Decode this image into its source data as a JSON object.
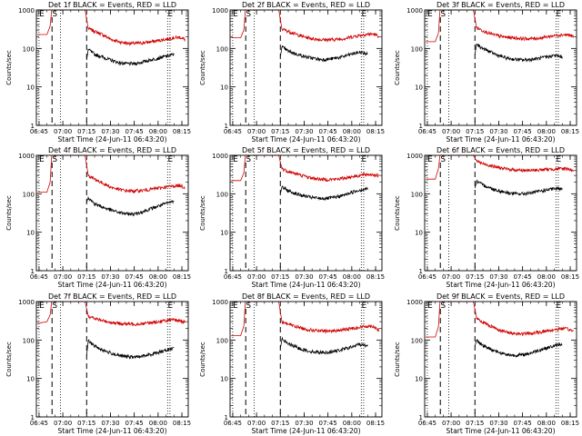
{
  "chart_data": [
    {
      "type": "line",
      "title": "Det 1f BLACK = Events, RED = LLD",
      "ylabel": "Counts/sec",
      "xlabel": "Start Time (24-Jun-11 06:43:20)",
      "yscale": "log",
      "ylim": [
        1,
        1000
      ],
      "ytick_labels": [
        "1000",
        "100",
        "10",
        "1"
      ],
      "xtick_labels": [
        "06:45",
        "07:00",
        "07:15",
        "07:30",
        "07:45",
        "08:00",
        "08:15"
      ],
      "markers": [
        "E",
        "S",
        "E"
      ],
      "colors": {
        "black": "#000000",
        "red": "#d00000"
      },
      "series": [
        {
          "color": "red",
          "x": [
            "06:44",
            "06:50",
            "06:52",
            "06:53",
            "06:57",
            "06:58",
            "07:14",
            "07:16",
            "07:20",
            "07:25",
            "07:30",
            "07:35",
            "07:40",
            "07:45",
            "07:50",
            "07:55",
            "08:00",
            "08:05",
            "08:10",
            "08:14",
            "08:17"
          ],
          "values": [
            230,
            230,
            380,
            1000,
            1000,
            1000,
            1000,
            330,
            280,
            230,
            175,
            150,
            138,
            135,
            140,
            148,
            160,
            175,
            190,
            195,
            170
          ]
        },
        {
          "color": "black",
          "x": [
            "07:15",
            "07:16",
            "07:20",
            "07:25",
            "07:30",
            "07:35",
            "07:40",
            "07:45",
            "07:50",
            "07:55",
            "08:00",
            "08:05",
            "08:10"
          ],
          "values": [
            50,
            95,
            70,
            60,
            50,
            43,
            40,
            40,
            44,
            50,
            56,
            63,
            70
          ]
        }
      ]
    },
    {
      "type": "line",
      "title": "Det 2f BLACK = Events, RED = LLD",
      "ylabel": "Counts/sec",
      "xlabel": "Start Time (24-Jun-11 06:43:20)",
      "yscale": "log",
      "ylim": [
        1,
        1000
      ],
      "ytick_labels": [
        "1000",
        "100",
        "10",
        "1"
      ],
      "xtick_labels": [
        "06:45",
        "07:00",
        "07:15",
        "07:30",
        "07:45",
        "08:00",
        "08:15"
      ],
      "markers": [
        "E",
        "S",
        "E"
      ],
      "colors": {
        "black": "#000000",
        "red": "#d00000"
      },
      "series": [
        {
          "color": "red",
          "x": [
            "06:44",
            "06:50",
            "06:52",
            "06:53",
            "06:57",
            "06:58",
            "07:14",
            "07:16",
            "07:20",
            "07:25",
            "07:30",
            "07:35",
            "07:40",
            "07:45",
            "07:50",
            "07:55",
            "08:00",
            "08:05",
            "08:10",
            "08:14",
            "08:17"
          ],
          "values": [
            190,
            190,
            300,
            1000,
            1000,
            1000,
            1000,
            320,
            280,
            235,
            200,
            180,
            170,
            168,
            172,
            180,
            200,
            220,
            235,
            235,
            210
          ]
        },
        {
          "color": "black",
          "x": [
            "07:15",
            "07:16",
            "07:20",
            "07:25",
            "07:30",
            "07:35",
            "07:40",
            "07:45",
            "07:50",
            "07:55",
            "08:00",
            "08:05",
            "08:10"
          ],
          "values": [
            60,
            110,
            85,
            72,
            62,
            56,
            52,
            52,
            56,
            62,
            72,
            80,
            72
          ]
        }
      ]
    },
    {
      "type": "line",
      "title": "Det 3f BLACK = Events, RED = LLD",
      "ylabel": "Counts/sec",
      "xlabel": "Start Time (24-Jun-11 06:43:20)",
      "yscale": "log",
      "ylim": [
        1,
        1000
      ],
      "ytick_labels": [
        "1000",
        "100",
        "10",
        "1"
      ],
      "xtick_labels": [
        "06:45",
        "07:00",
        "07:15",
        "07:30",
        "07:45",
        "08:00",
        "08:15"
      ],
      "markers": [
        "E",
        "S",
        "E"
      ],
      "colors": {
        "black": "#000000",
        "red": "#d00000"
      },
      "series": [
        {
          "color": "red",
          "x": [
            "06:44",
            "06:50",
            "06:52",
            "06:53",
            "06:57",
            "06:58",
            "07:14",
            "07:16",
            "07:20",
            "07:25",
            "07:30",
            "07:35",
            "07:40",
            "07:45",
            "07:50",
            "07:55",
            "08:00",
            "08:05",
            "08:10",
            "08:14",
            "08:17"
          ],
          "values": [
            150,
            150,
            250,
            1000,
            1000,
            1000,
            1000,
            350,
            290,
            240,
            210,
            195,
            190,
            180,
            180,
            185,
            200,
            215,
            230,
            225,
            200
          ]
        },
        {
          "color": "black",
          "x": [
            "07:15",
            "07:16",
            "07:20",
            "07:25",
            "07:30",
            "07:35",
            "07:40",
            "07:45",
            "07:50",
            "07:55",
            "08:00",
            "08:05",
            "08:10"
          ],
          "values": [
            70,
            130,
            100,
            80,
            65,
            56,
            52,
            50,
            52,
            55,
            60,
            66,
            60
          ]
        }
      ]
    },
    {
      "type": "line",
      "title": "Det 4f BLACK = Events, RED = LLD",
      "ylabel": "Counts/sec",
      "xlabel": "Start Time (24-Jun-11 06:43:20)",
      "yscale": "log",
      "ylim": [
        1,
        1000
      ],
      "ytick_labels": [
        "1000",
        "100",
        "10",
        "1"
      ],
      "xtick_labels": [
        "06:45",
        "07:00",
        "07:15",
        "07:30",
        "07:45",
        "08:00",
        "08:15"
      ],
      "markers": [
        "E",
        "S",
        "E"
      ],
      "colors": {
        "black": "#000000",
        "red": "#d00000"
      },
      "series": [
        {
          "color": "red",
          "x": [
            "06:44",
            "06:50",
            "06:52",
            "06:53",
            "06:57",
            "06:58",
            "07:14",
            "07:16",
            "07:20",
            "07:25",
            "07:30",
            "07:35",
            "07:40",
            "07:45",
            "07:50",
            "07:55",
            "08:00",
            "08:05",
            "08:10",
            "08:14",
            "08:17"
          ],
          "values": [
            110,
            110,
            200,
            1000,
            1000,
            1000,
            1000,
            300,
            240,
            190,
            150,
            130,
            120,
            118,
            122,
            130,
            140,
            150,
            160,
            165,
            145
          ]
        },
        {
          "color": "black",
          "x": [
            "07:15",
            "07:16",
            "07:20",
            "07:25",
            "07:30",
            "07:35",
            "07:40",
            "07:45",
            "07:50",
            "07:55",
            "08:00",
            "08:05",
            "08:10"
          ],
          "values": [
            60,
            80,
            55,
            45,
            38,
            33,
            30,
            30,
            34,
            40,
            48,
            56,
            65
          ]
        }
      ]
    },
    {
      "type": "line",
      "title": "Det 5f BLACK = Events, RED = LLD",
      "ylabel": "Counts/sec",
      "xlabel": "Start Time (24-Jun-11 06:43:20)",
      "yscale": "log",
      "ylim": [
        1,
        1000
      ],
      "ytick_labels": [
        "1000",
        "100",
        "10",
        "1"
      ],
      "xtick_labels": [
        "06:45",
        "07:00",
        "07:15",
        "07:30",
        "07:45",
        "08:00",
        "08:15"
      ],
      "markers": [
        "E",
        "S",
        "E"
      ],
      "colors": {
        "black": "#000000",
        "red": "#d00000"
      },
      "series": [
        {
          "color": "red",
          "x": [
            "06:44",
            "06:50",
            "06:52",
            "06:53",
            "06:57",
            "06:58",
            "07:14",
            "07:16",
            "07:20",
            "07:25",
            "07:30",
            "07:35",
            "07:40",
            "07:45",
            "07:50",
            "07:55",
            "08:00",
            "08:05",
            "08:10",
            "08:14",
            "08:17"
          ],
          "values": [
            220,
            220,
            350,
            1000,
            1000,
            1000,
            1000,
            450,
            380,
            330,
            290,
            255,
            240,
            235,
            240,
            255,
            280,
            300,
            320,
            315,
            290
          ]
        },
        {
          "color": "black",
          "x": [
            "07:15",
            "07:16",
            "07:20",
            "07:25",
            "07:30",
            "07:35",
            "07:40",
            "07:45",
            "07:50",
            "07:55",
            "08:00",
            "08:05",
            "08:10"
          ],
          "values": [
            100,
            150,
            120,
            100,
            88,
            80,
            76,
            76,
            82,
            92,
            110,
            125,
            135
          ]
        }
      ]
    },
    {
      "type": "line",
      "title": "Det 6f BLACK = Events, RED = LLD",
      "ylabel": "Counts/sec",
      "xlabel": "Start Time (24-Jun-11 06:43:20)",
      "yscale": "log",
      "ylim": [
        1,
        1000
      ],
      "ytick_labels": [
        "1000",
        "100",
        "10",
        "1"
      ],
      "xtick_labels": [
        "06:45",
        "07:00",
        "07:15",
        "07:30",
        "07:45",
        "08:00",
        "08:15"
      ],
      "markers": [
        "E",
        "S",
        "E"
      ],
      "colors": {
        "black": "#000000",
        "red": "#d00000"
      },
      "series": [
        {
          "color": "red",
          "x": [
            "06:44",
            "06:50",
            "06:52",
            "06:53",
            "06:57",
            "06:58",
            "07:14",
            "07:16",
            "07:20",
            "07:25",
            "07:30",
            "07:35",
            "07:40",
            "07:45",
            "07:50",
            "07:55",
            "08:00",
            "08:05",
            "08:10",
            "08:14",
            "08:17"
          ],
          "values": [
            240,
            240,
            450,
            1000,
            1000,
            1000,
            1000,
            720,
            600,
            540,
            480,
            440,
            420,
            410,
            405,
            415,
            430,
            440,
            450,
            445,
            400
          ]
        },
        {
          "color": "black",
          "x": [
            "07:15",
            "07:16",
            "07:20",
            "07:25",
            "07:30",
            "07:35",
            "07:40",
            "07:45",
            "07:50",
            "07:55",
            "08:00",
            "08:05",
            "08:10"
          ],
          "values": [
            140,
            210,
            170,
            140,
            120,
            108,
            100,
            100,
            105,
            115,
            125,
            135,
            140
          ]
        }
      ]
    },
    {
      "type": "line",
      "title": "Det 7f BLACK = Events, RED = LLD",
      "ylabel": "Counts/sec",
      "xlabel": "Start Time (24-Jun-11 06:43:20)",
      "yscale": "log",
      "ylim": [
        1,
        1000
      ],
      "ytick_labels": [
        "1000",
        "100",
        "10",
        "1"
      ],
      "xtick_labels": [
        "06:45",
        "07:00",
        "07:15",
        "07:30",
        "07:45",
        "08:00",
        "08:15"
      ],
      "markers": [
        "E",
        "S",
        "E"
      ],
      "colors": {
        "black": "#000000",
        "red": "#d00000"
      },
      "series": [
        {
          "color": "red",
          "x": [
            "06:44",
            "06:46",
            "06:50",
            "06:52",
            "06:53",
            "06:57",
            "06:58",
            "07:14",
            "07:16",
            "07:20",
            "07:25",
            "07:30",
            "07:35",
            "07:40",
            "07:45",
            "07:50",
            "07:55",
            "08:00",
            "08:05",
            "08:10",
            "08:14",
            "08:17"
          ],
          "values": [
            260,
            280,
            300,
            450,
            1000,
            1000,
            1000,
            1000,
            420,
            360,
            320,
            290,
            270,
            262,
            260,
            268,
            280,
            300,
            320,
            330,
            320,
            290
          ]
        },
        {
          "color": "black",
          "x": [
            "07:15",
            "07:16",
            "07:20",
            "07:25",
            "07:30",
            "07:35",
            "07:40",
            "07:45",
            "07:50",
            "07:55",
            "08:00",
            "08:05",
            "08:10"
          ],
          "values": [
            40,
            95,
            70,
            55,
            46,
            40,
            37,
            36,
            38,
            42,
            48,
            55,
            62
          ]
        }
      ]
    },
    {
      "type": "line",
      "title": "Det 8f BLACK = Events, RED = LLD",
      "ylabel": "Counts/sec",
      "xlabel": "Start Time (24-Jun-11 06:43:20)",
      "yscale": "log",
      "ylim": [
        1,
        1000
      ],
      "ytick_labels": [
        "1000",
        "100",
        "10",
        "1"
      ],
      "xtick_labels": [
        "06:45",
        "07:00",
        "07:15",
        "07:30",
        "07:45",
        "08:00",
        "08:15"
      ],
      "markers": [
        "E",
        "S",
        "E"
      ],
      "colors": {
        "black": "#000000",
        "red": "#d00000"
      },
      "series": [
        {
          "color": "red",
          "x": [
            "06:44",
            "06:50",
            "06:52",
            "06:53",
            "06:57",
            "06:58",
            "07:14",
            "07:16",
            "07:20",
            "07:25",
            "07:30",
            "07:35",
            "07:40",
            "07:45",
            "07:50",
            "07:55",
            "08:00",
            "08:05",
            "08:10",
            "08:14",
            "08:17"
          ],
          "values": [
            130,
            130,
            230,
            1000,
            1000,
            1000,
            1000,
            300,
            260,
            225,
            195,
            180,
            172,
            170,
            175,
            185,
            200,
            215,
            230,
            225,
            180
          ]
        },
        {
          "color": "black",
          "x": [
            "07:15",
            "07:16",
            "07:20",
            "07:25",
            "07:30",
            "07:35",
            "07:40",
            "07:45",
            "07:50",
            "07:55",
            "08:00",
            "08:05",
            "08:10"
          ],
          "values": [
            60,
            105,
            80,
            65,
            55,
            50,
            48,
            48,
            52,
            58,
            66,
            78,
            70
          ]
        }
      ]
    },
    {
      "type": "line",
      "title": "Det 9f BLACK = Events, RED = LLD",
      "ylabel": "Counts/sec",
      "xlabel": "Start Time (24-Jun-11 06:43:20)",
      "yscale": "log",
      "ylim": [
        1,
        1000
      ],
      "ytick_labels": [
        "1000",
        "100",
        "10",
        "1"
      ],
      "xtick_labels": [
        "06:45",
        "07:00",
        "07:15",
        "07:30",
        "07:45",
        "08:00",
        "08:15"
      ],
      "markers": [
        "E",
        "S",
        "E"
      ],
      "colors": {
        "black": "#000000",
        "red": "#d00000"
      },
      "series": [
        {
          "color": "red",
          "x": [
            "06:44",
            "06:50",
            "06:52",
            "06:53",
            "06:57",
            "06:58",
            "07:14",
            "07:16",
            "07:20",
            "07:25",
            "07:30",
            "07:35",
            "07:40",
            "07:45",
            "07:50",
            "07:55",
            "08:00",
            "08:05",
            "08:10",
            "08:14",
            "08:17"
          ],
          "values": [
            120,
            120,
            220,
            1000,
            1000,
            1000,
            1000,
            380,
            290,
            230,
            185,
            160,
            148,
            145,
            148,
            158,
            172,
            185,
            200,
            190,
            170
          ]
        },
        {
          "color": "black",
          "x": [
            "07:15",
            "07:16",
            "07:20",
            "07:25",
            "07:30",
            "07:35",
            "07:40",
            "07:45",
            "07:50",
            "07:55",
            "08:00",
            "08:05",
            "08:10"
          ],
          "values": [
            70,
            100,
            72,
            58,
            48,
            42,
            40,
            41,
            46,
            54,
            62,
            70,
            80
          ]
        }
      ]
    }
  ]
}
